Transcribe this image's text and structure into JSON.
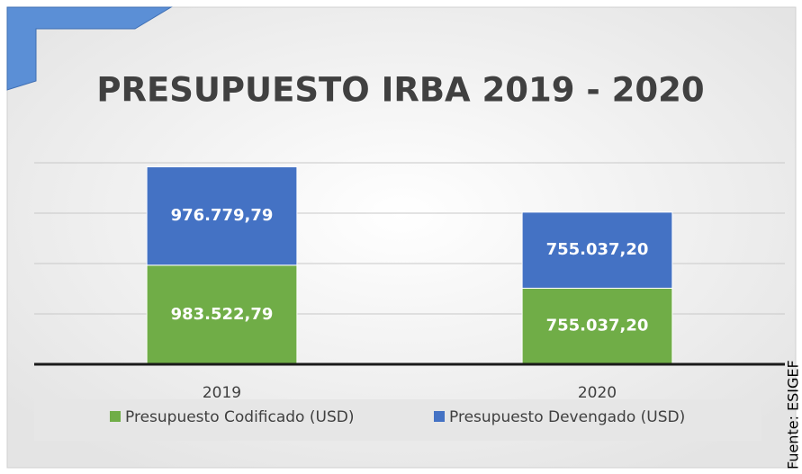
{
  "chart_data": {
    "type": "bar",
    "stacked": true,
    "title": "PRESUPUESTO IRBA 2019 - 2020",
    "categories": [
      "2019",
      "2020"
    ],
    "series": [
      {
        "name": "Presupuesto Codificado (USD)",
        "color": "#70ad47",
        "values": [
          983522.79,
          755037.2
        ],
        "value_labels": [
          "983.522,79",
          "755.037,20"
        ]
      },
      {
        "name": "Presupuesto Devengado (USD)",
        "color": "#4472c4",
        "values": [
          976779.79,
          755037.2
        ],
        "value_labels": [
          "976.779,79",
          "755.037,20"
        ]
      }
    ],
    "ylim": [
      0,
      2000000
    ],
    "yticks": [
      0,
      500000,
      1000000,
      1500000,
      2000000
    ],
    "grid": true,
    "legend": "bottom",
    "source": "Fuente: ESIGEF"
  }
}
